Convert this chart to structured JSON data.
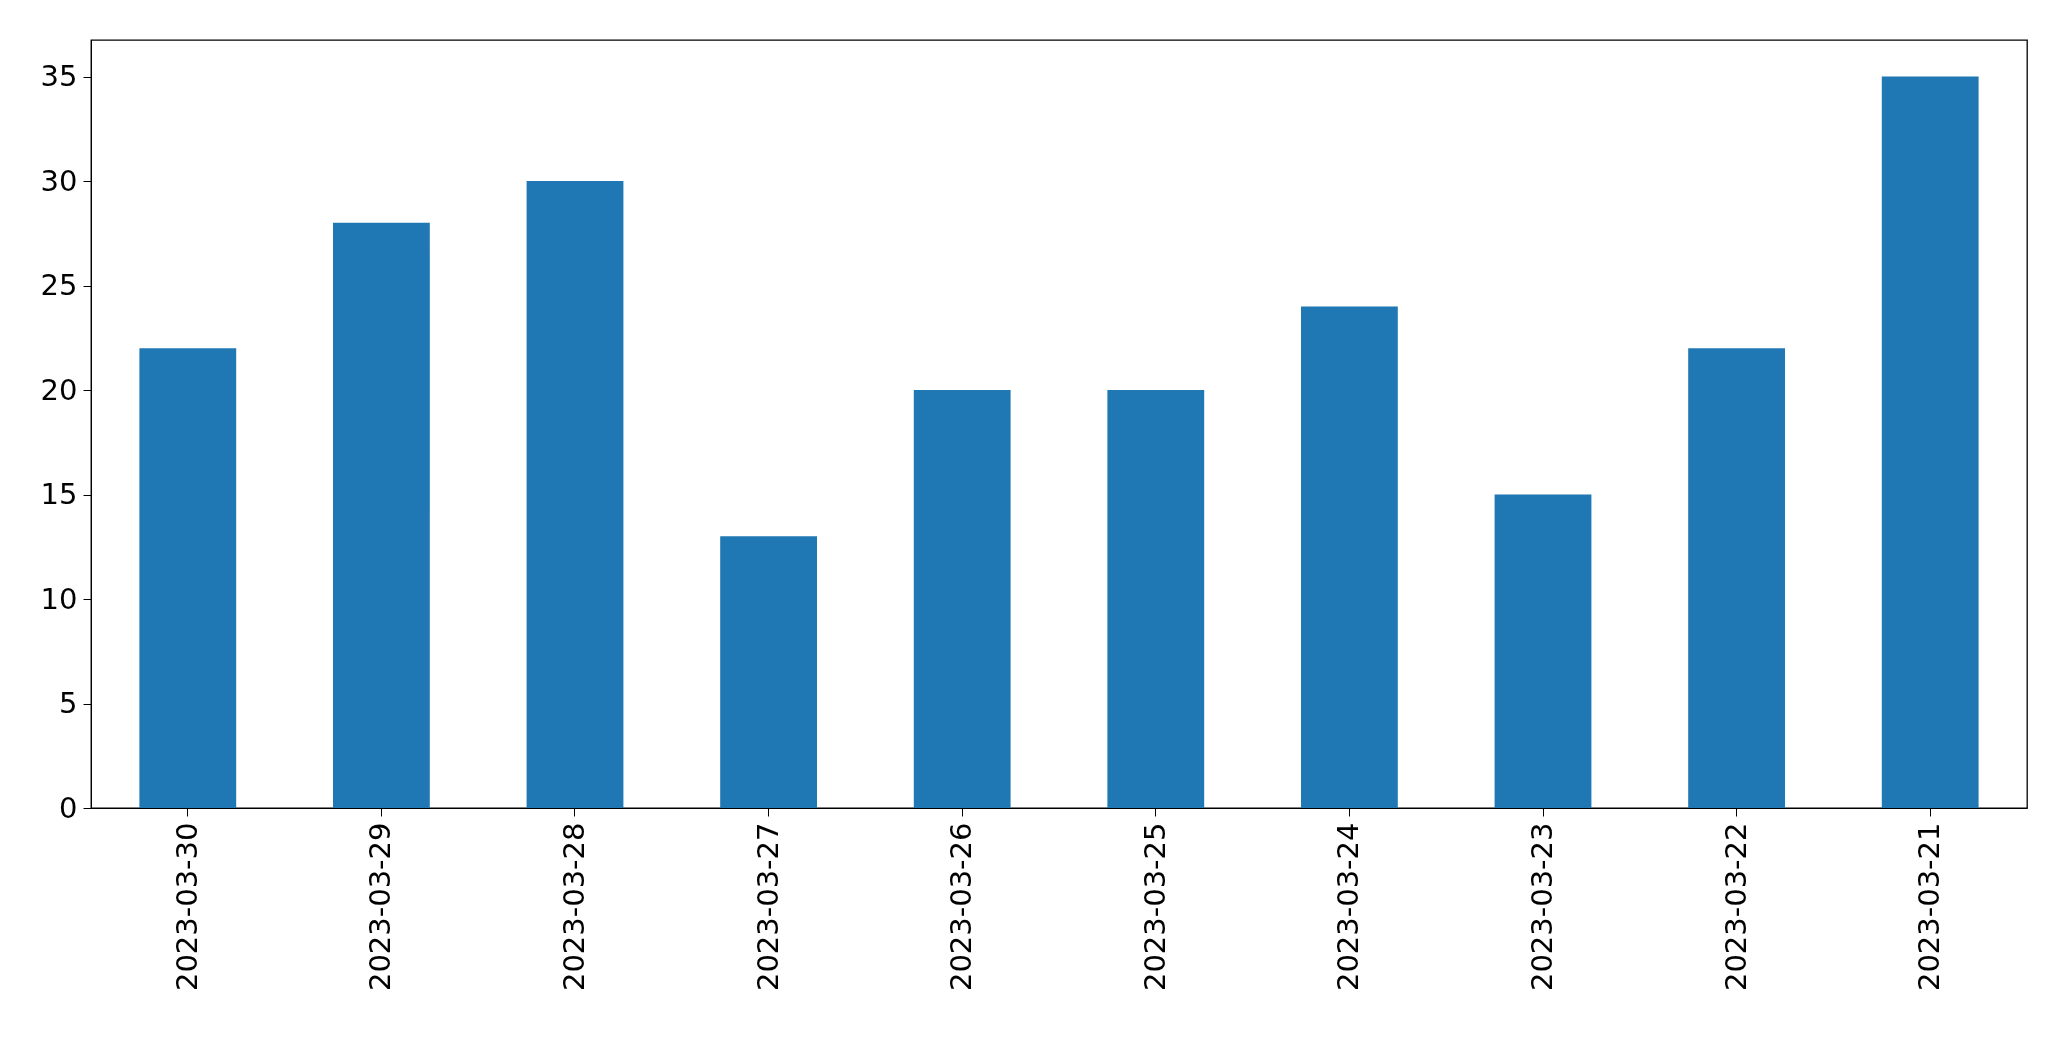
{
  "chart_data": {
    "type": "bar",
    "categories": [
      "2023-03-30",
      "2023-03-29",
      "2023-03-28",
      "2023-03-27",
      "2023-03-26",
      "2023-03-25",
      "2023-03-24",
      "2023-03-23",
      "2023-03-22",
      "2023-03-21"
    ],
    "values": [
      22,
      28,
      30,
      13,
      20,
      20,
      24,
      15,
      22,
      35
    ],
    "color": "#1f77b4",
    "ylim": [
      0,
      36.75
    ],
    "yticks": [
      0,
      5,
      10,
      15,
      20,
      25,
      30,
      35
    ],
    "grid": false
  }
}
